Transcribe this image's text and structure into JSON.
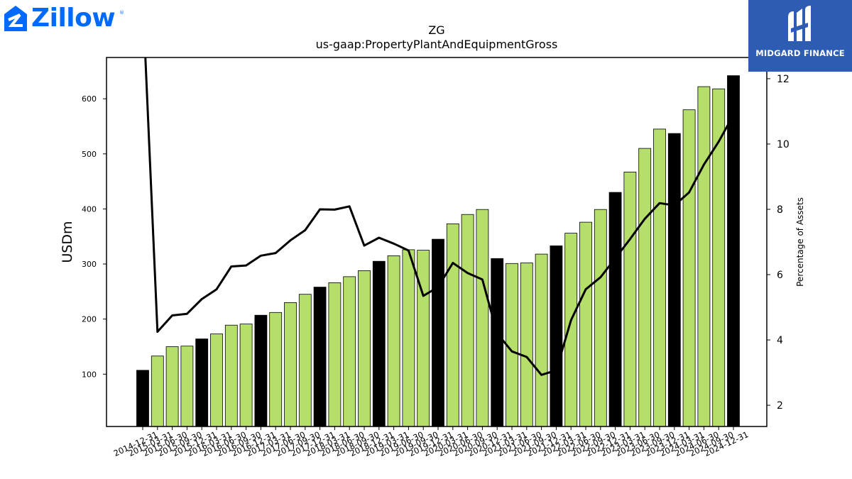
{
  "logos": {
    "left": {
      "name": "Zillow",
      "color": "#006aff"
    },
    "right": {
      "name": "MIDGARD FINANCE",
      "background": "#2f5cb3"
    }
  },
  "chart_data": {
    "type": "bar",
    "title": "ZG",
    "subtitle": "us-gaap:PropertyPlantAndEquipmentGross",
    "ylabel": "USDm",
    "y2label": "Percentage of Assets",
    "ylim": [
      5,
      675
    ],
    "y2lim": [
      1.35,
      12.65
    ],
    "yticks": [
      100,
      200,
      300,
      400,
      500,
      600
    ],
    "y2ticks": [
      2,
      4,
      6,
      8,
      10,
      12
    ],
    "bar_colors": {
      "q4": "#000000",
      "other": "#b5df6a"
    },
    "line_color": "#000000",
    "categories": [
      "2014-12-31",
      "2015-03-31",
      "2015-06-30",
      "2015-09-30",
      "2015-12-31",
      "2016-03-31",
      "2016-06-30",
      "2016-09-30",
      "2016-12-31",
      "2017-03-31",
      "2017-06-30",
      "2017-09-30",
      "2017-12-31",
      "2018-03-31",
      "2018-06-30",
      "2018-09-30",
      "2018-12-31",
      "2019-03-31",
      "2019-06-30",
      "2019-09-30",
      "2019-12-31",
      "2020-03-31",
      "2020-06-30",
      "2020-09-30",
      "2020-12-31",
      "2021-03-31",
      "2021-06-30",
      "2021-09-30",
      "2021-12-31",
      "2022-03-31",
      "2022-06-30",
      "2022-09-30",
      "2022-12-31",
      "2023-03-31",
      "2023-06-30",
      "2023-09-30",
      "2023-12-31",
      "2024-03-31",
      "2024-06-30",
      "2024-09-30",
      "2024-12-31"
    ],
    "series": [
      {
        "type": "bar",
        "values": [
          107,
          133,
          150,
          151,
          164,
          173,
          189,
          191,
          207,
          212,
          230,
          245,
          258,
          266,
          277,
          288,
          305,
          315,
          326,
          325,
          345,
          373,
          390,
          399,
          310,
          301,
          302,
          318,
          333,
          356,
          376,
          399,
          430,
          467,
          510,
          545,
          537,
          580,
          622,
          618,
          642
        ]
      },
      {
        "type": "line",
        "axis": "right",
        "values": [
          14.5,
          4.25,
          4.75,
          4.8,
          5.25,
          5.55,
          6.25,
          6.28,
          6.58,
          6.66,
          7.05,
          7.36,
          8.0,
          7.99,
          8.09,
          6.89,
          7.13,
          6.95,
          6.74,
          5.35,
          5.62,
          6.36,
          6.05,
          5.85,
          4.2,
          3.65,
          3.48,
          2.93,
          3.07,
          4.6,
          5.55,
          5.92,
          6.5,
          7.09,
          7.71,
          8.19,
          8.12,
          8.52,
          9.37,
          10.07,
          10.89
        ]
      }
    ]
  }
}
